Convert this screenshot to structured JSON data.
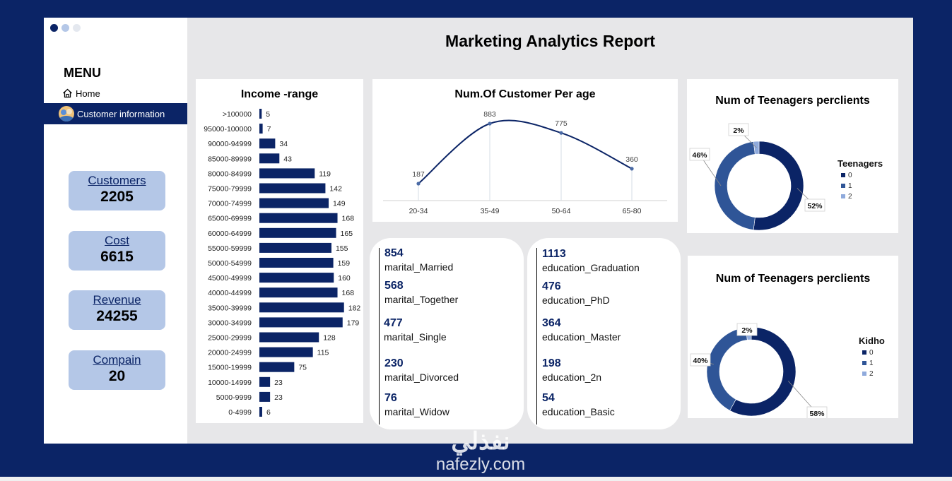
{
  "window_dots": [
    "#0b2466",
    "#b4c7e7",
    "#e4e8ef"
  ],
  "report_title": "Marketing Analytics Report",
  "sidebar": {
    "menu_title": "MENU",
    "items": [
      {
        "label": "Home",
        "icon": "home-icon"
      },
      {
        "label": "Customer information",
        "icon": "avatar-icon"
      }
    ]
  },
  "kpis": [
    {
      "label": "Customers",
      "value": "2205"
    },
    {
      "label": "Cost",
      "value": "6615"
    },
    {
      "label": "Revenue",
      "value": "24255"
    },
    {
      "label": "Compain",
      "value": "20"
    }
  ],
  "marital": [
    {
      "value": "854",
      "label": "marital_Married"
    },
    {
      "value": "568",
      "label": "marital_Together"
    },
    {
      "value": "477",
      "label": "marital_Single"
    },
    {
      "value": "230",
      "label": "marital_Divorced"
    },
    {
      "value": "76",
      "label": "marital_Widow"
    }
  ],
  "education": [
    {
      "value": "1113",
      "label": "education_Graduation"
    },
    {
      "value": "476",
      "label": "education_PhD"
    },
    {
      "value": "364",
      "label": "education_Master"
    },
    {
      "value": "198",
      "label": "education_2n"
    },
    {
      "value": "54",
      "label": "education_Basic"
    }
  ],
  "colors": {
    "navy": "#0b2466",
    "mid": "#2f5597",
    "light": "#8faadc",
    "kpi_bg": "#b4c7e7"
  },
  "watermark": {
    "line1": "نفذلي",
    "line2": "nafezly.com"
  },
  "chart_data": [
    {
      "type": "bar",
      "orientation": "horizontal",
      "title": "Income -range",
      "categories": [
        ">100000",
        "95000-100000",
        "90000-94999",
        "85000-89999",
        "80000-84999",
        "75000-79999",
        "70000-74999",
        "65000-69999",
        "60000-64999",
        "55000-59999",
        "50000-54999",
        "45000-49999",
        "40000-44999",
        "35000-39999",
        "30000-34999",
        "25000-29999",
        "20000-24999",
        "15000-19999",
        "10000-14999",
        "5000-9999",
        "0-4999"
      ],
      "values": [
        5,
        7,
        34,
        43,
        119,
        142,
        149,
        168,
        165,
        155,
        159,
        160,
        168,
        182,
        179,
        128,
        115,
        75,
        23,
        23,
        6
      ],
      "xlim": [
        0,
        190
      ],
      "color": "#0b2466"
    },
    {
      "type": "line",
      "title": "Num.Of Customer Per age",
      "categories": [
        "20-34",
        "35-49",
        "50-64",
        "65-80"
      ],
      "values": [
        187,
        883,
        775,
        360
      ],
      "smooth": true,
      "color": "#0b2466"
    },
    {
      "type": "pie",
      "donut": true,
      "title": "Num of Teenagers perclients",
      "legend_title": "Teenagers",
      "legend_position": "right",
      "labels": [
        "0",
        "1",
        "2"
      ],
      "values": [
        52,
        46,
        2
      ],
      "value_labels": [
        "52%",
        "46%",
        "2%"
      ],
      "colors": [
        "#0b2466",
        "#2f5597",
        "#8faadc"
      ]
    },
    {
      "type": "pie",
      "donut": true,
      "title": "Num of Teenagers perclients",
      "legend_title": "Kidho",
      "legend_position": "right",
      "labels": [
        "0",
        "1",
        "2"
      ],
      "values": [
        58,
        40,
        2
      ],
      "value_labels": [
        "58%",
        "40%",
        "2%"
      ],
      "colors": [
        "#0b2466",
        "#2f5597",
        "#8faadc"
      ]
    }
  ]
}
